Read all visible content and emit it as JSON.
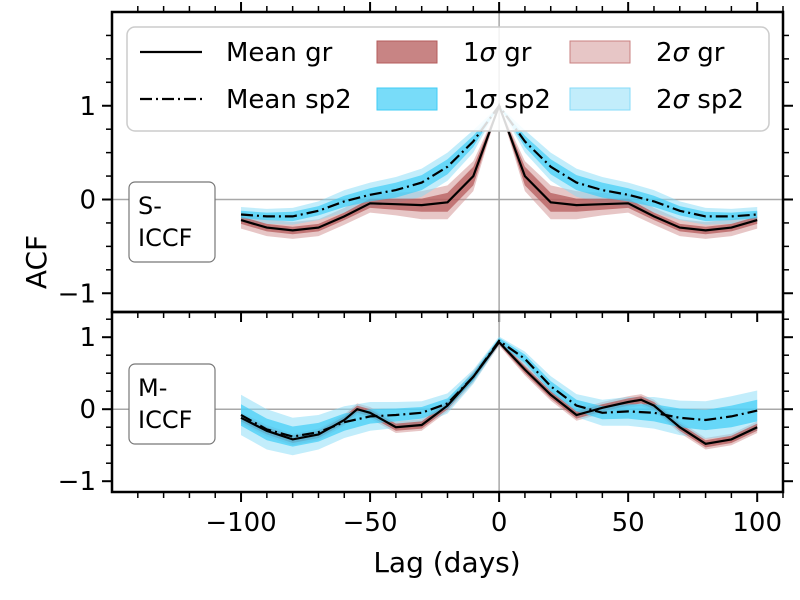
{
  "chart_data": {
    "type": "line",
    "xlabel": "Lag (days)",
    "ylabel": "ACF",
    "xlim": [
      -150,
      110
    ],
    "x_ticks": [
      -100,
      -50,
      0,
      50,
      100
    ],
    "x_tick_labels": [
      "−100",
      "−50",
      "0",
      "50",
      "100"
    ],
    "legend": {
      "placement": "top",
      "entries": [
        {
          "label_base": "Mean gr",
          "label_sym": "",
          "label_suffix": "",
          "kind": "solid-line",
          "color": "#000000"
        },
        {
          "label_base": "Mean sp2",
          "label_sym": "",
          "label_suffix": "",
          "kind": "dashdot-line",
          "color": "#000000"
        },
        {
          "label_base": "1",
          "label_sym": "σ",
          "label_suffix": " gr",
          "kind": "patch",
          "color": "#b55b5b",
          "opacity": 0.75
        },
        {
          "label_base": "1",
          "label_sym": "σ",
          "label_suffix": " sp2",
          "kind": "patch",
          "color": "#3fcdf6",
          "opacity": 0.7
        },
        {
          "label_base": "2",
          "label_sym": "σ",
          "label_suffix": " gr",
          "kind": "patch",
          "color": "#c98080",
          "opacity": 0.45
        },
        {
          "label_base": "2",
          "label_sym": "σ",
          "label_suffix": " sp2",
          "kind": "patch",
          "color": "#85dbf8",
          "opacity": 0.5
        }
      ]
    },
    "colors": {
      "gr_1sigma": "#b55b5b",
      "gr_2sigma": "#c98080",
      "sp2_1sigma": "#3fcdf6",
      "sp2_2sigma": "#85dbf8",
      "grid": "#a8a8a8"
    },
    "panels": [
      {
        "name": "S-ICCF",
        "label_lines": [
          "S-",
          "ICCF"
        ],
        "ylim": [
          -1.2,
          2.0
        ],
        "y_ticks": [
          -1,
          0,
          1
        ],
        "y_tick_labels": [
          "−1",
          "0",
          "1"
        ],
        "series": [
          {
            "name": "Mean gr",
            "x": [
              -100,
              -90,
              -80,
              -70,
              -60,
              -50,
              -40,
              -30,
              -20,
              -10,
              0,
              10,
              20,
              30,
              40,
              50,
              60,
              70,
              80,
              90,
              100
            ],
            "mean": [
              -0.22,
              -0.3,
              -0.33,
              -0.3,
              -0.18,
              -0.04,
              -0.05,
              -0.06,
              -0.03,
              0.25,
              1.0,
              0.25,
              -0.03,
              -0.06,
              -0.05,
              -0.04,
              -0.18,
              -0.3,
              -0.33,
              -0.3,
              -0.22
            ],
            "band1": [
              0.04,
              0.04,
              0.04,
              0.04,
              0.04,
              0.05,
              0.06,
              0.07,
              0.1,
              0.1,
              0.0,
              0.1,
              0.1,
              0.07,
              0.06,
              0.05,
              0.04,
              0.04,
              0.04,
              0.04,
              0.04
            ],
            "band2": [
              0.09,
              0.09,
              0.09,
              0.09,
              0.09,
              0.1,
              0.12,
              0.15,
              0.18,
              0.16,
              0.0,
              0.16,
              0.18,
              0.15,
              0.12,
              0.1,
              0.09,
              0.09,
              0.09,
              0.09,
              0.09
            ]
          },
          {
            "name": "Mean sp2",
            "x": [
              -100,
              -90,
              -80,
              -70,
              -60,
              -50,
              -40,
              -30,
              -20,
              -10,
              0,
              10,
              20,
              30,
              40,
              50,
              60,
              70,
              80,
              90,
              100
            ],
            "mean": [
              -0.16,
              -0.18,
              -0.18,
              -0.12,
              -0.02,
              0.05,
              0.1,
              0.18,
              0.35,
              0.62,
              1.0,
              0.62,
              0.35,
              0.18,
              0.1,
              0.05,
              -0.02,
              -0.12,
              -0.18,
              -0.18,
              -0.16
            ],
            "band1": [
              0.04,
              0.04,
              0.05,
              0.05,
              0.06,
              0.07,
              0.08,
              0.08,
              0.08,
              0.06,
              0.0,
              0.06,
              0.08,
              0.08,
              0.08,
              0.07,
              0.06,
              0.05,
              0.05,
              0.04,
              0.04
            ],
            "band2": [
              0.08,
              0.08,
              0.09,
              0.1,
              0.12,
              0.13,
              0.14,
              0.15,
              0.15,
              0.12,
              0.0,
              0.12,
              0.15,
              0.15,
              0.14,
              0.13,
              0.12,
              0.1,
              0.09,
              0.08,
              0.08
            ]
          }
        ]
      },
      {
        "name": "M-ICCF",
        "label_lines": [
          "M-",
          "ICCF"
        ],
        "ylim": [
          -1.15,
          1.35
        ],
        "y_ticks": [
          -1,
          0,
          1
        ],
        "y_tick_labels": [
          "−1",
          "0",
          "1"
        ],
        "series": [
          {
            "name": "Mean gr",
            "x": [
              -100,
              -90,
              -80,
              -70,
              -60,
              -55,
              -50,
              -40,
              -30,
              -20,
              -10,
              0,
              10,
              20,
              30,
              40,
              50,
              55,
              60,
              70,
              80,
              90,
              100
            ],
            "mean": [
              -0.12,
              -0.3,
              -0.42,
              -0.35,
              -0.15,
              0.0,
              -0.05,
              -0.25,
              -0.22,
              0.05,
              0.45,
              0.93,
              0.55,
              0.2,
              -0.08,
              0.02,
              0.1,
              0.13,
              0.05,
              -0.25,
              -0.48,
              -0.42,
              -0.25
            ],
            "band1": [
              0.05,
              0.05,
              0.05,
              0.05,
              0.05,
              0.05,
              0.05,
              0.05,
              0.05,
              0.05,
              0.05,
              0.03,
              0.05,
              0.05,
              0.05,
              0.05,
              0.05,
              0.05,
              0.05,
              0.05,
              0.05,
              0.05,
              0.05
            ],
            "band2": [
              0.08,
              0.08,
              0.08,
              0.08,
              0.08,
              0.08,
              0.08,
              0.08,
              0.08,
              0.08,
              0.08,
              0.05,
              0.08,
              0.08,
              0.08,
              0.08,
              0.08,
              0.08,
              0.08,
              0.08,
              0.08,
              0.08,
              0.08
            ]
          },
          {
            "name": "Mean sp2",
            "x": [
              -100,
              -90,
              -80,
              -70,
              -60,
              -50,
              -40,
              -30,
              -20,
              -10,
              0,
              10,
              20,
              30,
              40,
              50,
              60,
              70,
              80,
              90,
              100
            ],
            "mean": [
              -0.08,
              -0.28,
              -0.38,
              -0.32,
              -0.18,
              -0.1,
              -0.08,
              -0.05,
              0.08,
              0.45,
              0.95,
              0.7,
              0.32,
              0.05,
              -0.05,
              -0.03,
              -0.05,
              -0.12,
              -0.15,
              -0.1,
              -0.02
            ],
            "band1": [
              0.15,
              0.15,
              0.14,
              0.13,
              0.12,
              0.1,
              0.09,
              0.08,
              0.07,
              0.06,
              0.04,
              0.06,
              0.07,
              0.08,
              0.09,
              0.1,
              0.12,
              0.13,
              0.14,
              0.15,
              0.15
            ],
            "band2": [
              0.28,
              0.28,
              0.26,
              0.24,
              0.22,
              0.2,
              0.18,
              0.16,
              0.14,
              0.1,
              0.06,
              0.1,
              0.14,
              0.16,
              0.18,
              0.2,
              0.22,
              0.24,
              0.26,
              0.28,
              0.28
            ]
          }
        ]
      }
    ]
  }
}
